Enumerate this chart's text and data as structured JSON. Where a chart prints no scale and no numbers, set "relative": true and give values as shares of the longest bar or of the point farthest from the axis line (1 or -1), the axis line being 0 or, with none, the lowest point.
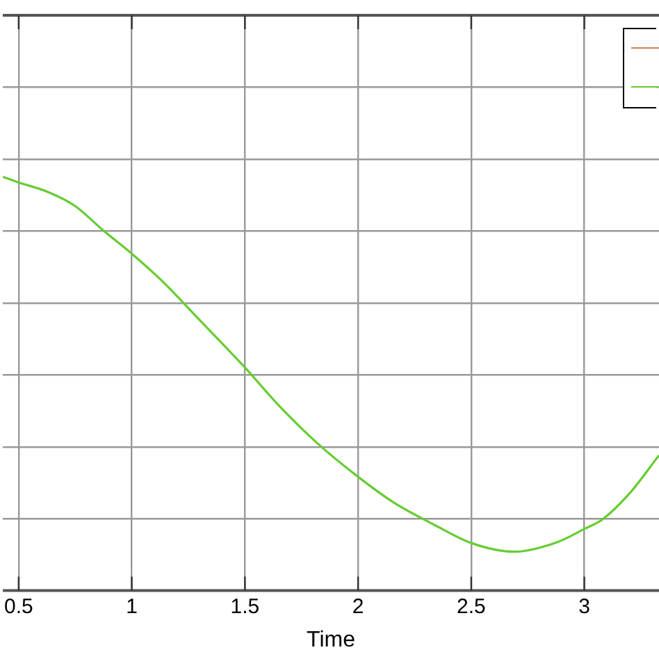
{
  "chart_data": {
    "type": "line",
    "xlabel": "Time",
    "relative": true,
    "xlim": [
      0.43,
      3.33
    ],
    "xticks": [
      0.5,
      1,
      1.5,
      2,
      2.5,
      3
    ],
    "grid": true,
    "marker": "none",
    "line_style": "solid",
    "x": [
      0.43,
      0.5,
      0.63,
      0.75,
      0.87,
      1.0,
      1.14,
      1.28,
      1.41,
      1.5,
      1.65,
      1.82,
      2.0,
      2.16,
      2.33,
      2.5,
      2.69,
      2.88,
      3.0,
      3.08,
      3.2,
      3.33
    ],
    "series": [
      {
        "color": "#d08060",
        "values": [
          null,
          null,
          null,
          null,
          null,
          null,
          null,
          null,
          null,
          null,
          null,
          null,
          null,
          null,
          null,
          null,
          null,
          null,
          null,
          null,
          null,
          null
        ]
      },
      {
        "color": "#66cc33",
        "values": [
          1.0,
          0.986,
          0.963,
          0.929,
          0.872,
          0.814,
          0.745,
          0.665,
          0.591,
          0.539,
          0.447,
          0.356,
          0.275,
          0.212,
          0.161,
          0.115,
          0.094,
          0.117,
          0.149,
          0.172,
          0.235,
          0.327
        ]
      }
    ]
  }
}
